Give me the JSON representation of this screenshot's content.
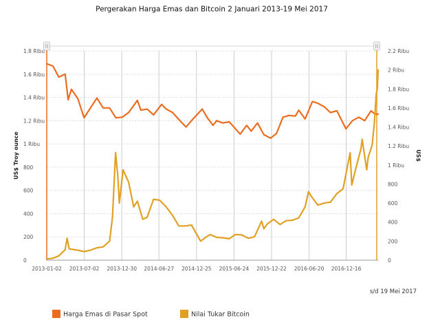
{
  "chart_data": {
    "type": "line",
    "title": "Pergerakan Harga Emas dan Bitcoin 2 Januari 2013-19 Mei 2017",
    "note": "s/d 19 Mei 2017",
    "x_tick_labels": [
      "2013-01-02",
      "2013-07-02",
      "2013-12-30",
      "2014-06-27",
      "2014-12-25",
      "2015-06-24",
      "2015-12-22",
      "2016-06-20",
      "2016-12-16"
    ],
    "left_axis": {
      "label": "US$ Troy ounce",
      "range": [
        0,
        1800
      ],
      "ticks": [
        0,
        200,
        400,
        600,
        800,
        1000,
        1200,
        1400,
        1600,
        1800
      ],
      "tick_labels": [
        "0",
        "200",
        "400",
        "600",
        "800",
        "1 Ribu",
        "1.2 Ribu",
        "1.4 Ribu",
        "1.6 Ribu",
        "1.8 Ribu"
      ]
    },
    "right_axis": {
      "label": "US$",
      "range": [
        0,
        2200
      ],
      "ticks": [
        0,
        200,
        400,
        600,
        800,
        1000,
        1200,
        1400,
        1600,
        1800,
        2000,
        2200
      ],
      "tick_labels": [
        "0",
        "200",
        "400",
        "600",
        "800",
        "1 Ribu",
        "1.2 Ribu",
        "1.4 Ribu",
        "1.6 Ribu",
        "1.8 Ribu",
        "2 Ribu",
        "2.2 Ribu"
      ]
    },
    "grid": true,
    "legend_position": "bottom-left",
    "series": [
      {
        "name": "Harga Emas di Pasar Spot",
        "color": "#ec6c1d",
        "axis": "left",
        "points": [
          [
            "2013-01-02",
            1690
          ],
          [
            "2013-02-01",
            1670
          ],
          [
            "2013-03-01",
            1575
          ],
          [
            "2013-04-01",
            1600
          ],
          [
            "2013-04-15",
            1380
          ],
          [
            "2013-05-01",
            1470
          ],
          [
            "2013-06-01",
            1390
          ],
          [
            "2013-07-01",
            1225
          ],
          [
            "2013-08-01",
            1310
          ],
          [
            "2013-09-01",
            1395
          ],
          [
            "2013-10-01",
            1310
          ],
          [
            "2013-11-01",
            1310
          ],
          [
            "2013-12-01",
            1225
          ],
          [
            "2014-01-01",
            1230
          ],
          [
            "2014-02-01",
            1270
          ],
          [
            "2014-03-15",
            1375
          ],
          [
            "2014-04-01",
            1290
          ],
          [
            "2014-05-01",
            1300
          ],
          [
            "2014-06-01",
            1250
          ],
          [
            "2014-07-10",
            1340
          ],
          [
            "2014-08-01",
            1300
          ],
          [
            "2014-09-01",
            1270
          ],
          [
            "2014-10-01",
            1210
          ],
          [
            "2014-11-05",
            1145
          ],
          [
            "2014-12-01",
            1200
          ],
          [
            "2015-01-22",
            1300
          ],
          [
            "2015-02-15",
            1225
          ],
          [
            "2015-03-15",
            1160
          ],
          [
            "2015-04-01",
            1200
          ],
          [
            "2015-05-01",
            1180
          ],
          [
            "2015-06-01",
            1190
          ],
          [
            "2015-07-24",
            1085
          ],
          [
            "2015-08-24",
            1160
          ],
          [
            "2015-09-15",
            1110
          ],
          [
            "2015-10-15",
            1180
          ],
          [
            "2015-11-15",
            1080
          ],
          [
            "2015-12-17",
            1050
          ],
          [
            "2016-01-15",
            1090
          ],
          [
            "2016-02-15",
            1230
          ],
          [
            "2016-03-15",
            1245
          ],
          [
            "2016-04-15",
            1240
          ],
          [
            "2016-05-01",
            1290
          ],
          [
            "2016-06-01",
            1215
          ],
          [
            "2016-07-06",
            1365
          ],
          [
            "2016-08-01",
            1350
          ],
          [
            "2016-09-01",
            1320
          ],
          [
            "2016-10-01",
            1270
          ],
          [
            "2016-11-01",
            1285
          ],
          [
            "2016-12-15",
            1130
          ],
          [
            "2017-01-15",
            1200
          ],
          [
            "2017-02-15",
            1230
          ],
          [
            "2017-03-15",
            1200
          ],
          [
            "2017-04-15",
            1285
          ],
          [
            "2017-05-01",
            1260
          ],
          [
            "2017-05-19",
            1255
          ]
        ]
      },
      {
        "name": "Nilai Tukar Bitcoin",
        "color": "#e2a023",
        "axis": "right",
        "points": [
          [
            "2013-01-02",
            13
          ],
          [
            "2013-02-01",
            20
          ],
          [
            "2013-03-01",
            45
          ],
          [
            "2013-04-01",
            110
          ],
          [
            "2013-04-10",
            230
          ],
          [
            "2013-04-20",
            120
          ],
          [
            "2013-05-01",
            115
          ],
          [
            "2013-06-01",
            105
          ],
          [
            "2013-07-01",
            90
          ],
          [
            "2013-08-01",
            105
          ],
          [
            "2013-09-01",
            130
          ],
          [
            "2013-10-01",
            140
          ],
          [
            "2013-11-01",
            200
          ],
          [
            "2013-11-15",
            450
          ],
          [
            "2013-11-30",
            1130
          ],
          [
            "2013-12-10",
            900
          ],
          [
            "2013-12-18",
            600
          ],
          [
            "2014-01-05",
            950
          ],
          [
            "2014-02-01",
            820
          ],
          [
            "2014-02-25",
            560
          ],
          [
            "2014-03-15",
            620
          ],
          [
            "2014-04-10",
            430
          ],
          [
            "2014-05-01",
            450
          ],
          [
            "2014-06-01",
            640
          ],
          [
            "2014-07-01",
            630
          ],
          [
            "2014-08-01",
            560
          ],
          [
            "2014-09-01",
            470
          ],
          [
            "2014-10-01",
            360
          ],
          [
            "2014-11-01",
            360
          ],
          [
            "2014-12-01",
            370
          ],
          [
            "2015-01-14",
            200
          ],
          [
            "2015-02-01",
            230
          ],
          [
            "2015-03-01",
            270
          ],
          [
            "2015-04-01",
            240
          ],
          [
            "2015-05-01",
            235
          ],
          [
            "2015-06-01",
            225
          ],
          [
            "2015-07-01",
            270
          ],
          [
            "2015-08-01",
            265
          ],
          [
            "2015-09-01",
            230
          ],
          [
            "2015-10-01",
            245
          ],
          [
            "2015-11-04",
            410
          ],
          [
            "2015-11-15",
            330
          ],
          [
            "2015-12-01",
            380
          ],
          [
            "2016-01-01",
            430
          ],
          [
            "2016-02-01",
            375
          ],
          [
            "2016-03-01",
            415
          ],
          [
            "2016-04-01",
            420
          ],
          [
            "2016-05-01",
            445
          ],
          [
            "2016-06-01",
            560
          ],
          [
            "2016-06-17",
            720
          ],
          [
            "2016-07-01",
            670
          ],
          [
            "2016-08-01",
            580
          ],
          [
            "2016-09-01",
            600
          ],
          [
            "2016-10-01",
            610
          ],
          [
            "2016-11-01",
            700
          ],
          [
            "2016-12-01",
            750
          ],
          [
            "2017-01-04",
            1130
          ],
          [
            "2017-01-12",
            790
          ],
          [
            "2017-02-01",
            970
          ],
          [
            "2017-02-25",
            1170
          ],
          [
            "2017-03-03",
            1270
          ],
          [
            "2017-03-25",
            950
          ],
          [
            "2017-04-01",
            1080
          ],
          [
            "2017-04-20",
            1210
          ],
          [
            "2017-05-01",
            1450
          ],
          [
            "2017-05-10",
            1750
          ],
          [
            "2017-05-15",
            1800
          ],
          [
            "2017-05-19",
            2000
          ]
        ]
      }
    ]
  }
}
